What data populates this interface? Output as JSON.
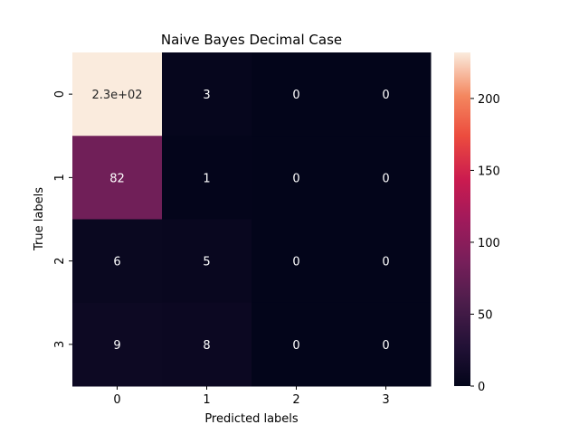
{
  "chart_data": {
    "type": "heatmap",
    "title": "Naive Bayes Decimal Case",
    "xlabel": "Predicted labels",
    "ylabel": "True labels",
    "x_categories": [
      "0",
      "1",
      "2",
      "3"
    ],
    "y_categories": [
      "0",
      "1",
      "2",
      "3"
    ],
    "values": [
      [
        232,
        3,
        0,
        0
      ],
      [
        82,
        1,
        0,
        0
      ],
      [
        6,
        5,
        0,
        0
      ],
      [
        9,
        8,
        0,
        0
      ]
    ],
    "annotations": [
      [
        "2.3e+02",
        "3",
        "0",
        "0"
      ],
      [
        "82",
        "1",
        "0",
        "0"
      ],
      [
        "6",
        "5",
        "0",
        "0"
      ],
      [
        "9",
        "8",
        "0",
        "0"
      ]
    ],
    "colorbar": {
      "colormap": "rocket",
      "range": [
        0,
        232
      ],
      "ticks": [
        0,
        50,
        100,
        150,
        200
      ],
      "tick_labels": [
        "0",
        "50",
        "100",
        "150",
        "200"
      ]
    }
  }
}
